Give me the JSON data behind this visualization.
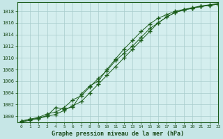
{
  "xlabel": "Graphe pression niveau de la mer (hPa)",
  "bg_color": "#c6e6e6",
  "plot_bg_color": "#d4eeee",
  "grid_color": "#a8cccc",
  "line_color": "#1a5c1a",
  "marker_color": "#1a5c1a",
  "xlim": [
    -0.5,
    23
  ],
  "ylim": [
    999.0,
    1019.5
  ],
  "yticks": [
    1000,
    1002,
    1004,
    1006,
    1008,
    1010,
    1012,
    1014,
    1016,
    1018
  ],
  "xticks": [
    0,
    1,
    2,
    3,
    4,
    5,
    6,
    7,
    8,
    9,
    10,
    11,
    12,
    13,
    14,
    15,
    16,
    17,
    18,
    19,
    20,
    21,
    22,
    23
  ],
  "series": [
    [
      999.2,
      999.5,
      999.8,
      1000.4,
      1000.7,
      1001.5,
      1002.8,
      1003.5,
      1005.0,
      1006.5,
      1007.8,
      1009.5,
      1010.8,
      1012.0,
      1013.5,
      1015.0,
      1016.0,
      1017.0,
      1017.8,
      1018.2,
      1018.5,
      1018.8,
      1019.0,
      1019.2
    ],
    [
      999.0,
      999.3,
      999.6,
      1000.0,
      1000.3,
      1001.0,
      1001.8,
      1002.5,
      1004.0,
      1005.5,
      1007.0,
      1008.5,
      1010.0,
      1011.5,
      1013.0,
      1014.5,
      1016.0,
      1017.0,
      1017.8,
      1018.2,
      1018.5,
      1018.8,
      1019.0,
      1019.2
    ],
    [
      999.1,
      999.4,
      999.7,
      1000.1,
      1001.5,
      1001.2,
      1001.6,
      1003.8,
      1005.2,
      1006.0,
      1008.0,
      1009.8,
      1011.5,
      1013.0,
      1014.5,
      1015.8,
      1016.8,
      1017.4,
      1018.0,
      1018.3,
      1018.6,
      1018.9,
      1019.1,
      1019.3
    ]
  ]
}
